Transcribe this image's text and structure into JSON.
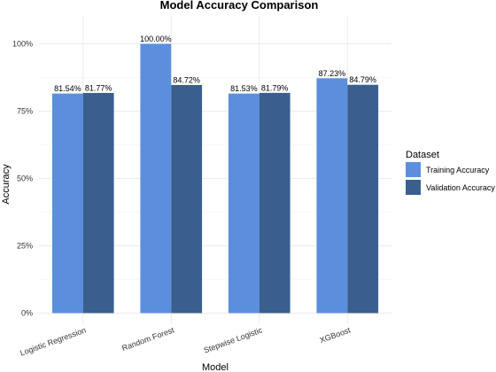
{
  "chart_data": {
    "type": "bar",
    "title": "Model Accuracy Comparison",
    "xlabel": "Model",
    "ylabel": "Accuracy",
    "categories": [
      "Logistic Regression",
      "Random Forest",
      "Stepwise Logistic",
      "XGBoost"
    ],
    "series": [
      {
        "name": "Training Accuracy",
        "color": "#5b8fde",
        "values": [
          81.54,
          100.0,
          81.53,
          87.23
        ],
        "labels": [
          "81.54%",
          "100.00%",
          "81.53%",
          "87.23%"
        ]
      },
      {
        "name": "Validation Accuracy",
        "color": "#3a5f8f",
        "values": [
          81.77,
          84.72,
          81.79,
          84.79
        ],
        "labels": [
          "81.77%",
          "84.72%",
          "81.79%",
          "84.79%"
        ]
      }
    ],
    "yticks": [
      0,
      25,
      50,
      75,
      100
    ],
    "ytick_labels": [
      "0%",
      "25%",
      "50%",
      "75%",
      "100%"
    ],
    "ylim": [
      0,
      105
    ],
    "legend": {
      "title": "Dataset",
      "position": "right"
    },
    "grid": true
  }
}
